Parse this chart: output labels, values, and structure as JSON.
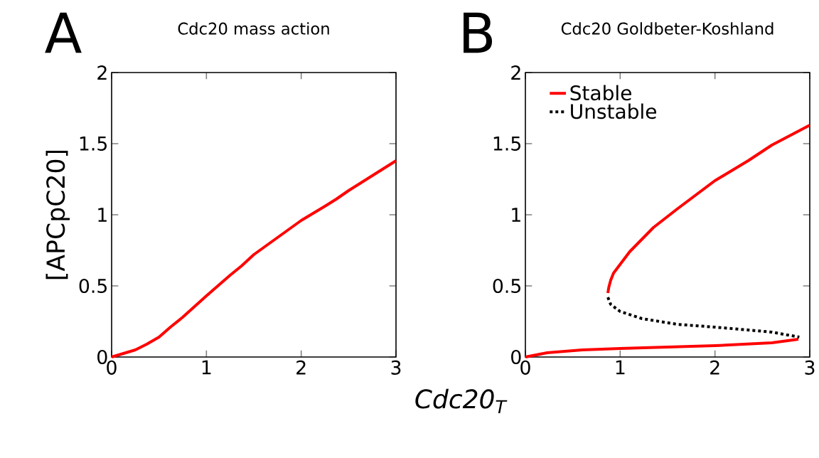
{
  "chart_data": [
    {
      "type": "line",
      "title": "Cdc20 mass action",
      "annotations": [
        "A"
      ],
      "ylabel": "[APCpC20]",
      "xlabel": "Cdc20$_{T}$",
      "xlim": [
        0,
        3
      ],
      "ylim": [
        0,
        2
      ],
      "xticks": [
        0,
        1,
        2,
        3
      ],
      "yticks": [
        0,
        0.5,
        1,
        1.5,
        2
      ],
      "series": [
        {
          "color": "#ff0000",
          "line_style": "solid",
          "x": [
            0,
            0.25,
            0.37,
            0.5,
            0.62,
            0.75,
            1.0,
            1.25,
            1.37,
            1.5,
            1.75,
            2.0,
            2.25,
            2.37,
            2.5,
            2.75,
            3.0
          ],
          "values": [
            0,
            0.05,
            0.09,
            0.14,
            0.21,
            0.28,
            0.43,
            0.575,
            0.64,
            0.72,
            0.84,
            0.96,
            1.06,
            1.11,
            1.17,
            1.275,
            1.38
          ]
        }
      ]
    },
    {
      "type": "line",
      "title": "Cdc20 Goldbeter-Koshland",
      "annotations": [
        "B"
      ],
      "legend": "top left",
      "xlim": [
        0,
        3
      ],
      "ylim": [
        0,
        2
      ],
      "xticks": [
        0,
        1,
        2,
        3
      ],
      "yticks": [
        0,
        0.5,
        1,
        1.5,
        2
      ],
      "series": [
        {
          "name": "Stable",
          "color": "#ff0000",
          "line_style": "solid",
          "x": [
            0,
            0.23,
            0.6,
            1.0,
            2.0,
            2.6,
            2.88,
            null,
            0.87,
            0.88,
            0.9,
            0.93,
            1.1,
            1.35,
            1.6,
            2.0,
            2.35,
            2.6,
            3.0
          ],
          "values": [
            0,
            0.03,
            0.05,
            0.06,
            0.08,
            0.1,
            0.125,
            null,
            0.45,
            0.49,
            0.54,
            0.59,
            0.74,
            0.91,
            1.04,
            1.24,
            1.38,
            1.49,
            1.63
          ]
        },
        {
          "name": "Unstable",
          "color": "#000000",
          "line_style": "dotted",
          "x": [
            0.87,
            0.9,
            1.0,
            1.23,
            1.6,
            2.0,
            2.35,
            2.6,
            2.89
          ],
          "values": [
            0.42,
            0.37,
            0.32,
            0.27,
            0.23,
            0.21,
            0.19,
            0.175,
            0.14
          ]
        }
      ]
    }
  ]
}
